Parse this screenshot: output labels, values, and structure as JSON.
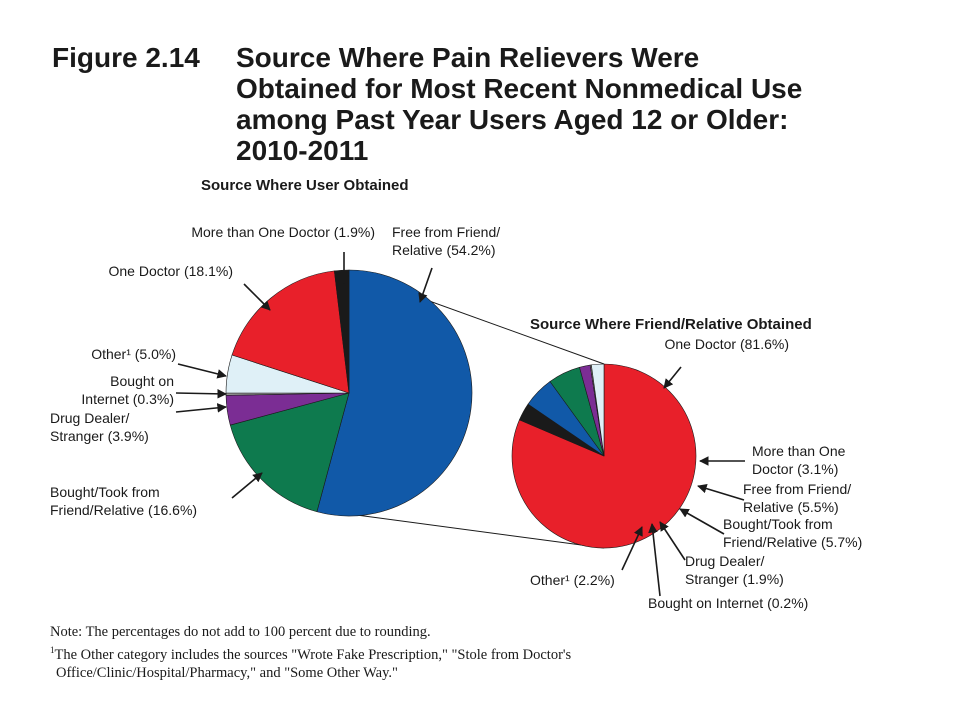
{
  "figure": {
    "label": "Figure 2.14",
    "title": "Source Where Pain Relievers Were\nObtained for Most Recent Nonmedical Use\namong Past Year Users Aged 12 or Older:\n2010-2011"
  },
  "chart_data": [
    {
      "type": "pie",
      "title": "Source Where User Obtained",
      "slices": [
        {
          "label": "Free from Friend/\nRelative (54.2%)",
          "value": 54.2,
          "color": "#1159a8"
        },
        {
          "label": "Bought/Took from\nFriend/Relative (16.6%)",
          "value": 16.6,
          "color": "#0e7a4e"
        },
        {
          "label": "Drug Dealer/\nStranger (3.9%)",
          "value": 3.9,
          "color": "#7b2d94"
        },
        {
          "label": "Bought on\nInternet (0.3%)",
          "value": 0.3,
          "color": "#9a9a9a"
        },
        {
          "label": "Other¹ (5.0%)",
          "value": 5.0,
          "color": "#dff0f7"
        },
        {
          "label": "One Doctor (18.1%)",
          "value": 18.1,
          "color": "#e8202a"
        },
        {
          "label": "More than One Doctor (1.9%)",
          "value": 1.9,
          "color": "#1a1a1a"
        }
      ]
    },
    {
      "type": "pie",
      "title": "Source Where Friend/Relative Obtained",
      "slices": [
        {
          "label": "One Doctor (81.6%)",
          "value": 81.6,
          "color": "#e8202a"
        },
        {
          "label": "More than One\nDoctor (3.1%)",
          "value": 3.1,
          "color": "#1a1a1a"
        },
        {
          "label": "Free from Friend/\nRelative (5.5%)",
          "value": 5.5,
          "color": "#1159a8"
        },
        {
          "label": "Bought/Took from\nFriend/Relative (5.7%)",
          "value": 5.7,
          "color": "#0e7a4e"
        },
        {
          "label": "Drug Dealer/\nStranger (1.9%)",
          "value": 1.9,
          "color": "#7b2d94"
        },
        {
          "label": "Bought on Internet (0.2%)",
          "value": 0.2,
          "color": "#9a9a9a"
        },
        {
          "label": "Other¹ (2.2%)",
          "value": 2.2,
          "color": "#dff0f7"
        }
      ]
    }
  ],
  "notes": {
    "note1": "Note:  The percentages do not add to 100 percent due to rounding.",
    "footnote_marker": "1",
    "footnote_line1": "The Other category includes the sources \"Wrote Fake Prescription,\" \"Stole from Doctor's",
    "footnote_line2": "Office/Clinic/Hospital/Pharmacy,\" and \"Some Other Way.\""
  }
}
